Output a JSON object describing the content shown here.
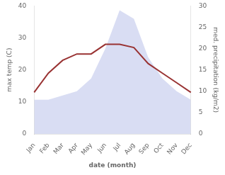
{
  "chart_data": {
    "type": "line",
    "categories": [
      "Jan",
      "Feb",
      "Mar",
      "Apr",
      "May",
      "Jun",
      "Jul",
      "Aug",
      "Sep",
      "Oct",
      "Nov",
      "Dec"
    ],
    "xlabel": "date (month)",
    "ylabel": "max temp (C)",
    "y2label": "med. precipitation (kg/m2)",
    "series": [
      {
        "type": "line",
        "color": "#993333",
        "values": [
          13,
          19,
          23,
          25,
          25,
          28,
          28,
          27,
          22,
          19,
          16,
          13
        ]
      },
      {
        "type": "area",
        "color": "#b3bce8",
        "axis": "y2",
        "values": [
          8,
          8,
          9,
          10,
          13,
          20,
          29,
          27,
          18,
          13,
          10,
          8
        ]
      }
    ],
    "ylim": [
      0,
      40
    ],
    "yticks": [
      0,
      10,
      20,
      30,
      40
    ],
    "y2lim": [
      0,
      30
    ],
    "y2ticks": [
      0,
      5,
      10,
      15,
      20,
      25,
      30
    ],
    "grid": false
  }
}
